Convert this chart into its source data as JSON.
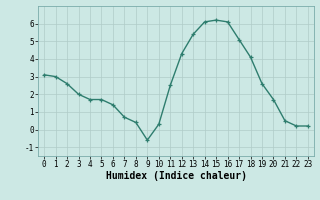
{
  "x": [
    0,
    1,
    2,
    3,
    4,
    5,
    6,
    7,
    8,
    9,
    10,
    11,
    12,
    13,
    14,
    15,
    16,
    17,
    18,
    19,
    20,
    21,
    22,
    23
  ],
  "y": [
    3.1,
    3.0,
    2.6,
    2.0,
    1.7,
    1.7,
    1.4,
    0.7,
    0.4,
    -0.6,
    0.3,
    2.5,
    4.3,
    5.4,
    6.1,
    6.2,
    6.1,
    5.1,
    4.1,
    2.6,
    1.7,
    0.5,
    0.2,
    0.2
  ],
  "xlabel": "Humidex (Indice chaleur)",
  "xlim": [
    -0.5,
    23.5
  ],
  "ylim": [
    -1.5,
    7.0
  ],
  "yticks": [
    -1,
    0,
    1,
    2,
    3,
    4,
    5,
    6
  ],
  "xticks": [
    0,
    1,
    2,
    3,
    4,
    5,
    6,
    7,
    8,
    9,
    10,
    11,
    12,
    13,
    14,
    15,
    16,
    17,
    18,
    19,
    20,
    21,
    22,
    23
  ],
  "line_color": "#2e7d6e",
  "marker": "+",
  "bg_color": "#cce8e4",
  "grid_color": "#b0ccc8",
  "tick_label_fontsize": 5.5,
  "xlabel_fontsize": 7,
  "linewidth": 1.0,
  "markersize": 3.5,
  "markeredgewidth": 0.9
}
